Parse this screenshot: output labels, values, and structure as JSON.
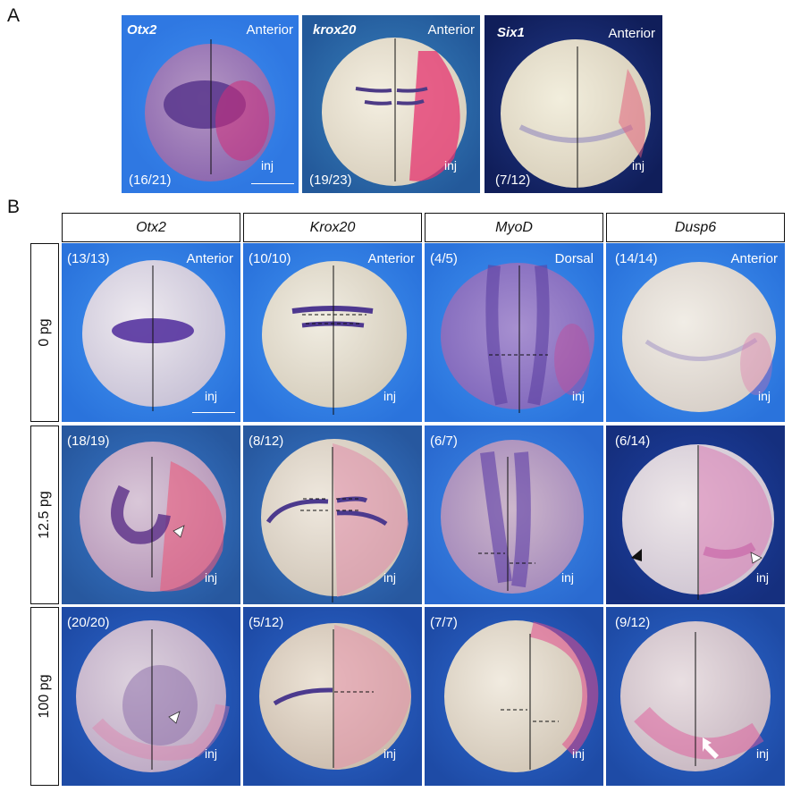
{
  "panels": {
    "a": {
      "letter": "A"
    },
    "b": {
      "letter": "B"
    }
  },
  "panel_a": [
    {
      "gene": "Otx2",
      "orientation": "Anterior",
      "count": "(16/21)",
      "inj": "inj"
    },
    {
      "gene": "krox20",
      "orientation": "Anterior",
      "count": "(19/23)",
      "inj": "inj"
    },
    {
      "gene": "Six1",
      "orientation": "Anterior",
      "count": "(7/12)",
      "inj": "inj"
    }
  ],
  "panel_b": {
    "columns": [
      "Otx2",
      "Krox20",
      "MyoD",
      "Dusp6"
    ],
    "rows": [
      "0 pg",
      "12.5 pg",
      "100 pg"
    ],
    "cells": [
      [
        {
          "count": "(13/13)",
          "orientation": "Anterior",
          "inj": "inj"
        },
        {
          "count": "(10/10)",
          "orientation": "Anterior",
          "inj": "inj"
        },
        {
          "count": "(4/5)",
          "orientation": "Dorsal",
          "inj": "inj"
        },
        {
          "count": "(14/14)",
          "orientation": "Anterior",
          "inj": "inj"
        }
      ],
      [
        {
          "count": "(18/19)",
          "orientation": "",
          "inj": "inj"
        },
        {
          "count": "(8/12)",
          "orientation": "",
          "inj": "inj"
        },
        {
          "count": "(6/7)",
          "orientation": "",
          "inj": "inj"
        },
        {
          "count": "(6/14)",
          "orientation": "",
          "inj": "inj"
        }
      ],
      [
        {
          "count": "(20/20)",
          "orientation": "",
          "inj": "inj"
        },
        {
          "count": "(5/12)",
          "orientation": "",
          "inj": "inj"
        },
        {
          "count": "(7/7)",
          "orientation": "",
          "inj": "inj"
        },
        {
          "count": "(9/12)",
          "orientation": "",
          "inj": "inj"
        }
      ]
    ]
  },
  "colors": {
    "background_blue": "#2f7be6",
    "background_dark_blue": "#1b3f9a",
    "embryo_cream": "#eae4d4",
    "stain_purple": "#5a3c9c",
    "inj_magenta": "#e03a7c"
  }
}
